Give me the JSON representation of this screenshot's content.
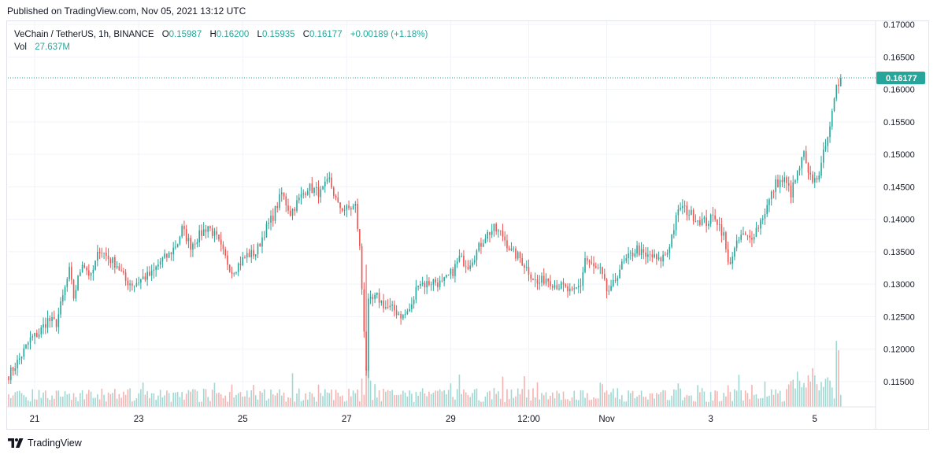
{
  "header": {
    "published_text": "Published on TradingView.com, Nov 05, 2021 13:12 UTC"
  },
  "legend": {
    "symbol": "VeChain / TetherUS, 1h, BINANCE",
    "open_label": "O",
    "open": "0.15987",
    "high_label": "H",
    "high": "0.16200",
    "low_label": "L",
    "low": "0.15935",
    "close_label": "C",
    "close": "0.16177",
    "change": "+0.00189 (+1.18%)",
    "vol_label": "Vol",
    "vol": "27.637M"
  },
  "last_price_label": "0.16177",
  "footer": {
    "brand": "TradingView",
    "logo_icon": "tradingview-logo-icon"
  },
  "colors": {
    "up": "#26a69a",
    "down": "#ef5350",
    "vol_up": "#9fd8d2",
    "vol_down": "#f5b3b1",
    "grid": "#f0f3fa",
    "text": "#131722"
  },
  "chart_data": {
    "type": "candlestick",
    "symbol": "VeChain / TetherUS",
    "interval": "1h",
    "exchange": "BINANCE",
    "y_axis": {
      "side": "right",
      "ylim": [
        0.1105,
        0.1705
      ],
      "ticks": [
        "0.11500",
        "0.12000",
        "0.12500",
        "0.13000",
        "0.13500",
        "0.14000",
        "0.14500",
        "0.15000",
        "0.15500",
        "0.16000",
        "0.16500",
        "0.17000"
      ]
    },
    "x_axis": {
      "ticks": [
        {
          "label": "21",
          "bar": 12
        },
        {
          "label": "23",
          "bar": 60
        },
        {
          "label": "25",
          "bar": 108
        },
        {
          "label": "27",
          "bar": 156
        },
        {
          "label": "29",
          "bar": 204
        },
        {
          "label": "12:00",
          "bar": 240
        },
        {
          "label": "Nov",
          "bar": 276
        },
        {
          "label": "3",
          "bar": 324
        },
        {
          "label": "5",
          "bar": 372
        }
      ]
    },
    "grid": true,
    "last_price": 0.16177,
    "close_anchors": [
      [
        0,
        0.116
      ],
      [
        5,
        0.1185
      ],
      [
        10,
        0.1215
      ],
      [
        14,
        0.1225
      ],
      [
        18,
        0.1245
      ],
      [
        22,
        0.124
      ],
      [
        28,
        0.132
      ],
      [
        30,
        0.128
      ],
      [
        34,
        0.1335
      ],
      [
        38,
        0.131
      ],
      [
        42,
        0.1355
      ],
      [
        46,
        0.134
      ],
      [
        50,
        0.133
      ],
      [
        54,
        0.1305
      ],
      [
        58,
        0.13
      ],
      [
        62,
        0.131
      ],
      [
        66,
        0.1315
      ],
      [
        70,
        0.1335
      ],
      [
        74,
        0.1345
      ],
      [
        78,
        0.1365
      ],
      [
        80,
        0.1385
      ],
      [
        84,
        0.136
      ],
      [
        88,
        0.1375
      ],
      [
        92,
        0.139
      ],
      [
        96,
        0.137
      ],
      [
        100,
        0.134
      ],
      [
        103,
        0.132
      ],
      [
        106,
        0.133
      ],
      [
        110,
        0.1345
      ],
      [
        114,
        0.1348
      ],
      [
        118,
        0.138
      ],
      [
        122,
        0.1405
      ],
      [
        126,
        0.144
      ],
      [
        130,
        0.141
      ],
      [
        134,
        0.143
      ],
      [
        138,
        0.145
      ],
      [
        144,
        0.144
      ],
      [
        148,
        0.146
      ],
      [
        152,
        0.142
      ],
      [
        156,
        0.1415
      ],
      [
        160,
        0.142
      ],
      [
        162,
        0.1355
      ],
      [
        165,
        0.117
      ],
      [
        166,
        0.127
      ],
      [
        170,
        0.128
      ],
      [
        174,
        0.1265
      ],
      [
        178,
        0.126
      ],
      [
        182,
        0.125
      ],
      [
        186,
        0.1265
      ],
      [
        189,
        0.1305
      ],
      [
        192,
        0.13
      ],
      [
        196,
        0.1305
      ],
      [
        200,
        0.13
      ],
      [
        205,
        0.132
      ],
      [
        208,
        0.134
      ],
      [
        212,
        0.133
      ],
      [
        216,
        0.135
      ],
      [
        220,
        0.1375
      ],
      [
        224,
        0.1385
      ],
      [
        228,
        0.1375
      ],
      [
        232,
        0.135
      ],
      [
        236,
        0.134
      ],
      [
        240,
        0.132
      ],
      [
        244,
        0.13
      ],
      [
        248,
        0.131
      ],
      [
        252,
        0.13
      ],
      [
        256,
        0.1295
      ],
      [
        260,
        0.1285
      ],
      [
        264,
        0.13
      ],
      [
        266,
        0.134
      ],
      [
        270,
        0.1325
      ],
      [
        273,
        0.132
      ],
      [
        276,
        0.129
      ],
      [
        278,
        0.129
      ],
      [
        282,
        0.1325
      ],
      [
        286,
        0.134
      ],
      [
        290,
        0.1355
      ],
      [
        294,
        0.134
      ],
      [
        296,
        0.1345
      ],
      [
        300,
        0.1335
      ],
      [
        304,
        0.135
      ],
      [
        308,
        0.14
      ],
      [
        310,
        0.142
      ],
      [
        314,
        0.141
      ],
      [
        318,
        0.14
      ],
      [
        322,
        0.1395
      ],
      [
        326,
        0.1405
      ],
      [
        330,
        0.1375
      ],
      [
        332,
        0.133
      ],
      [
        334,
        0.1345
      ],
      [
        338,
        0.1375
      ],
      [
        342,
        0.137
      ],
      [
        346,
        0.139
      ],
      [
        350,
        0.142
      ],
      [
        354,
        0.1455
      ],
      [
        358,
        0.146
      ],
      [
        361,
        0.144
      ],
      [
        364,
        0.147
      ],
      [
        367,
        0.15
      ],
      [
        369,
        0.1465
      ],
      [
        372,
        0.146
      ],
      [
        375,
        0.148
      ],
      [
        377,
        0.152
      ],
      [
        380,
        0.156
      ],
      [
        382,
        0.16
      ],
      [
        384,
        0.1618
      ]
    ],
    "volume_note": "volume histogram at bottom of pane"
  }
}
